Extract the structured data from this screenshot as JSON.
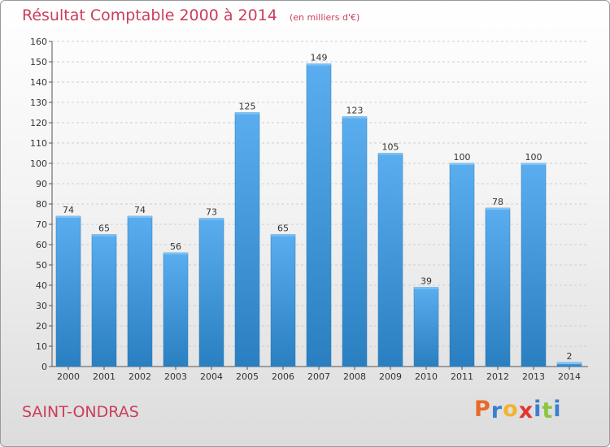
{
  "header": {
    "title": "Résultat Comptable 2000 à 2014",
    "unit": "(en milliers d'€)"
  },
  "commune": "SAINT-ONDRAS",
  "logo": {
    "text": "Proxiti",
    "colors": [
      "#e8692a",
      "#3d7fcf",
      "#f2b32d",
      "#e0382f",
      "#3d7fcf",
      "#8cc63f",
      "#3d7fcf"
    ]
  },
  "colors": {
    "bar_top": "#5aaef0",
    "bar_bottom": "#2a7fc0",
    "text_red": "#cc3d5b"
  },
  "chart_data": {
    "type": "bar",
    "title": "Résultat Comptable 2000 à 2014",
    "subtitle": "(en milliers d'€)",
    "categories": [
      "2000",
      "2001",
      "2002",
      "2003",
      "2004",
      "2005",
      "2006",
      "2007",
      "2008",
      "2009",
      "2010",
      "2011",
      "2012",
      "2013",
      "2014"
    ],
    "values": [
      74,
      65,
      74,
      56,
      73,
      125,
      65,
      149,
      123,
      105,
      39,
      100,
      78,
      100,
      2
    ],
    "ylim": [
      0,
      160
    ],
    "yticks": [
      0,
      10,
      20,
      30,
      40,
      50,
      60,
      70,
      80,
      90,
      100,
      110,
      120,
      130,
      140,
      150,
      160
    ],
    "grid": true,
    "legend": "none"
  }
}
